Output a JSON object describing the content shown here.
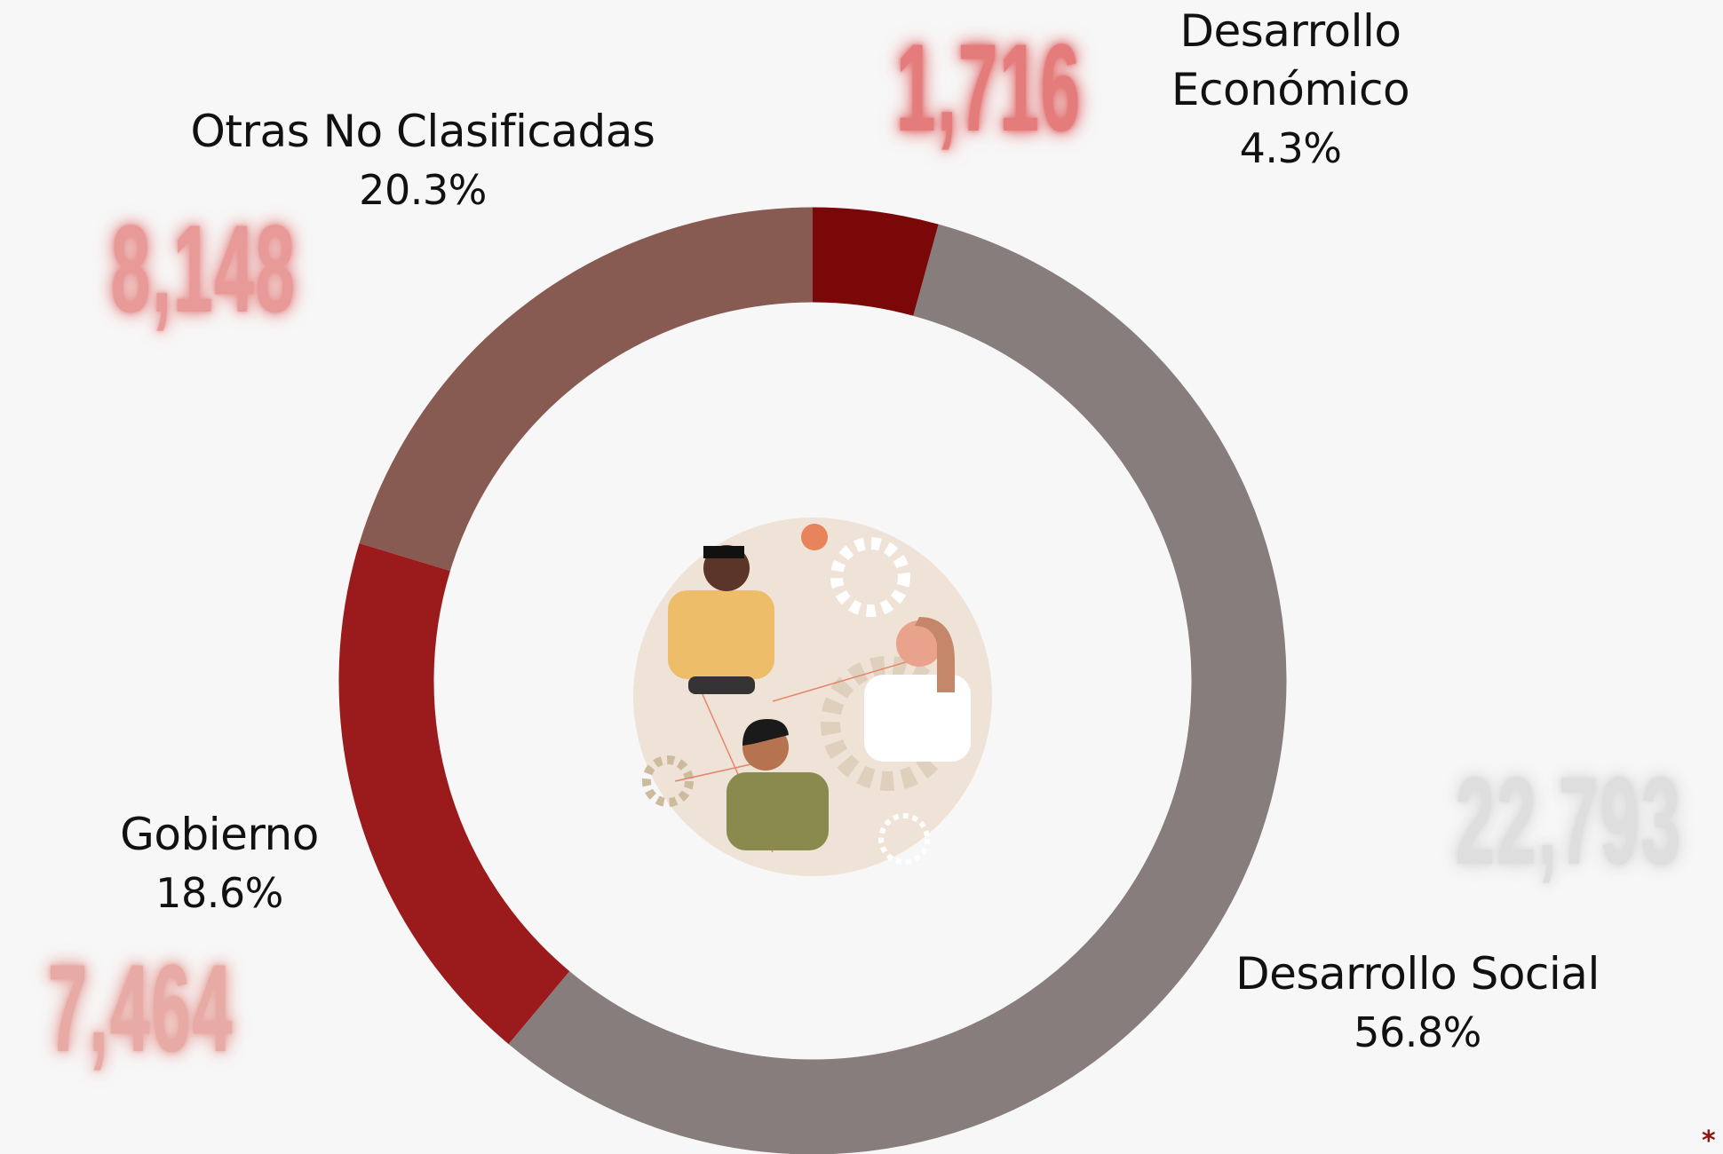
{
  "chart_data": {
    "type": "pie",
    "donut": true,
    "categories": [
      "Desarrollo Económico",
      "Desarrollo Social",
      "Gobierno",
      "Otras No Clasificadas"
    ],
    "values": [
      1716,
      22793,
      7464,
      8148
    ],
    "value_labels": [
      "1,716",
      "22,793",
      "7,464",
      "8,148"
    ],
    "percent_labels": [
      "4.3%",
      "56.8%",
      "18.6%",
      "20.3%"
    ],
    "colors": [
      "#7b0808",
      "#877d7d",
      "#9b1a1c",
      "#875a52"
    ],
    "label_colors": [
      "#e47c7c",
      "#dedede",
      "#e8aaa4",
      "#e89a98"
    ],
    "footnote": "*"
  }
}
